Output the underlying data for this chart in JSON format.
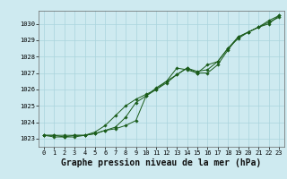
{
  "title": "Graphe pression niveau de la mer (hPa)",
  "xlim": [
    -0.5,
    23.5
  ],
  "ylim": [
    1022.5,
    1030.8
  ],
  "yticks": [
    1023,
    1024,
    1025,
    1026,
    1027,
    1028,
    1029,
    1030
  ],
  "xticks": [
    0,
    1,
    2,
    3,
    4,
    5,
    6,
    7,
    8,
    9,
    10,
    11,
    12,
    13,
    14,
    15,
    16,
    17,
    18,
    19,
    20,
    21,
    22,
    23
  ],
  "bg_color": "#ceeaf0",
  "grid_color": "#aad4dc",
  "line_color": "#1a5c1a",
  "series1": [
    1023.2,
    1023.2,
    1023.2,
    1023.2,
    1023.2,
    1023.3,
    1023.5,
    1023.6,
    1023.8,
    1024.1,
    1025.6,
    1026.1,
    1026.5,
    1026.9,
    1027.3,
    1027.0,
    1027.0,
    1027.5,
    1028.4,
    1029.2,
    1029.5,
    1029.8,
    1030.1,
    1030.4
  ],
  "series2": [
    1023.2,
    1023.2,
    1023.1,
    1023.2,
    1023.2,
    1023.4,
    1023.8,
    1024.4,
    1025.0,
    1025.4,
    1025.7,
    1026.0,
    1026.4,
    1026.9,
    1027.3,
    1027.1,
    1027.2,
    1027.7,
    1028.5,
    1029.1,
    1029.5,
    1029.8,
    1030.2,
    1030.5
  ],
  "series3": [
    1023.2,
    1023.1,
    1023.1,
    1023.1,
    1023.2,
    1023.3,
    1023.5,
    1023.7,
    1024.3,
    1025.2,
    1025.6,
    1026.0,
    1026.5,
    1027.3,
    1027.2,
    1027.0,
    1027.5,
    1027.7,
    1028.5,
    1029.2,
    1029.5,
    1029.8,
    1030.0,
    1030.5
  ],
  "title_fontsize": 7,
  "tick_fontsize": 5
}
